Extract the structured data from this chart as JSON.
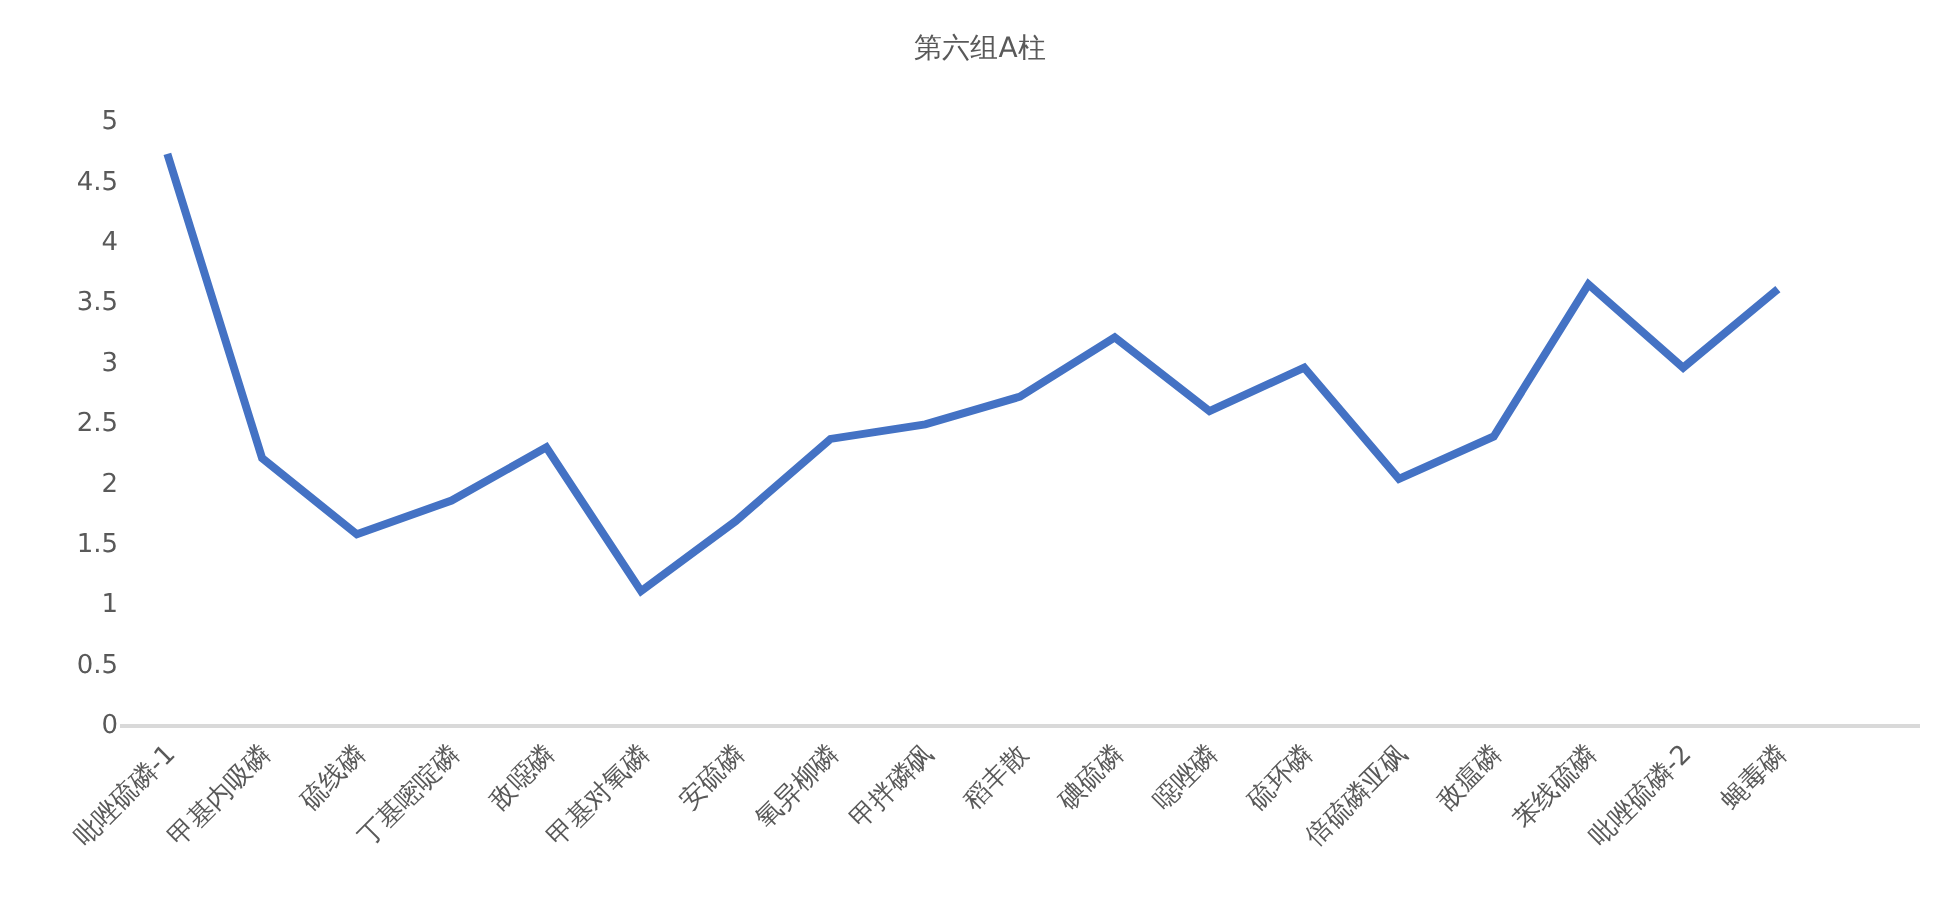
{
  "chart_data": {
    "type": "line",
    "title": "第六组A柱",
    "categories": [
      "吡唑硫磷-1",
      "甲基内吸磷",
      "硫线磷",
      "丁基嘧啶磷",
      "敌噁磷",
      "甲基对氧磷",
      "安硫磷",
      "氧异柳磷",
      "甲拌磷砜",
      "稻丰散",
      "碘硫磷",
      "噁唑磷",
      "硫环磷",
      "倍硫磷亚砜",
      "敌瘟磷",
      "苯线硫磷",
      "吡唑硫磷-2",
      "蝇毒磷",
      null
    ],
    "series": [
      {
        "color": "#4472c4",
        "values": [
          4.72,
          2.2,
          1.57,
          1.85,
          2.29,
          1.1,
          1.68,
          2.36,
          2.48,
          2.71,
          3.2,
          2.59,
          2.95,
          2.03,
          2.38,
          3.64,
          2.95,
          3.6,
          null
        ]
      }
    ],
    "ylim": [
      0,
      5
    ],
    "yticks": [
      0,
      0.5,
      1,
      1.5,
      2,
      2.5,
      3,
      3.5,
      4,
      4.5,
      5
    ],
    "grid": false,
    "marker": "none",
    "line_style": "solid"
  }
}
